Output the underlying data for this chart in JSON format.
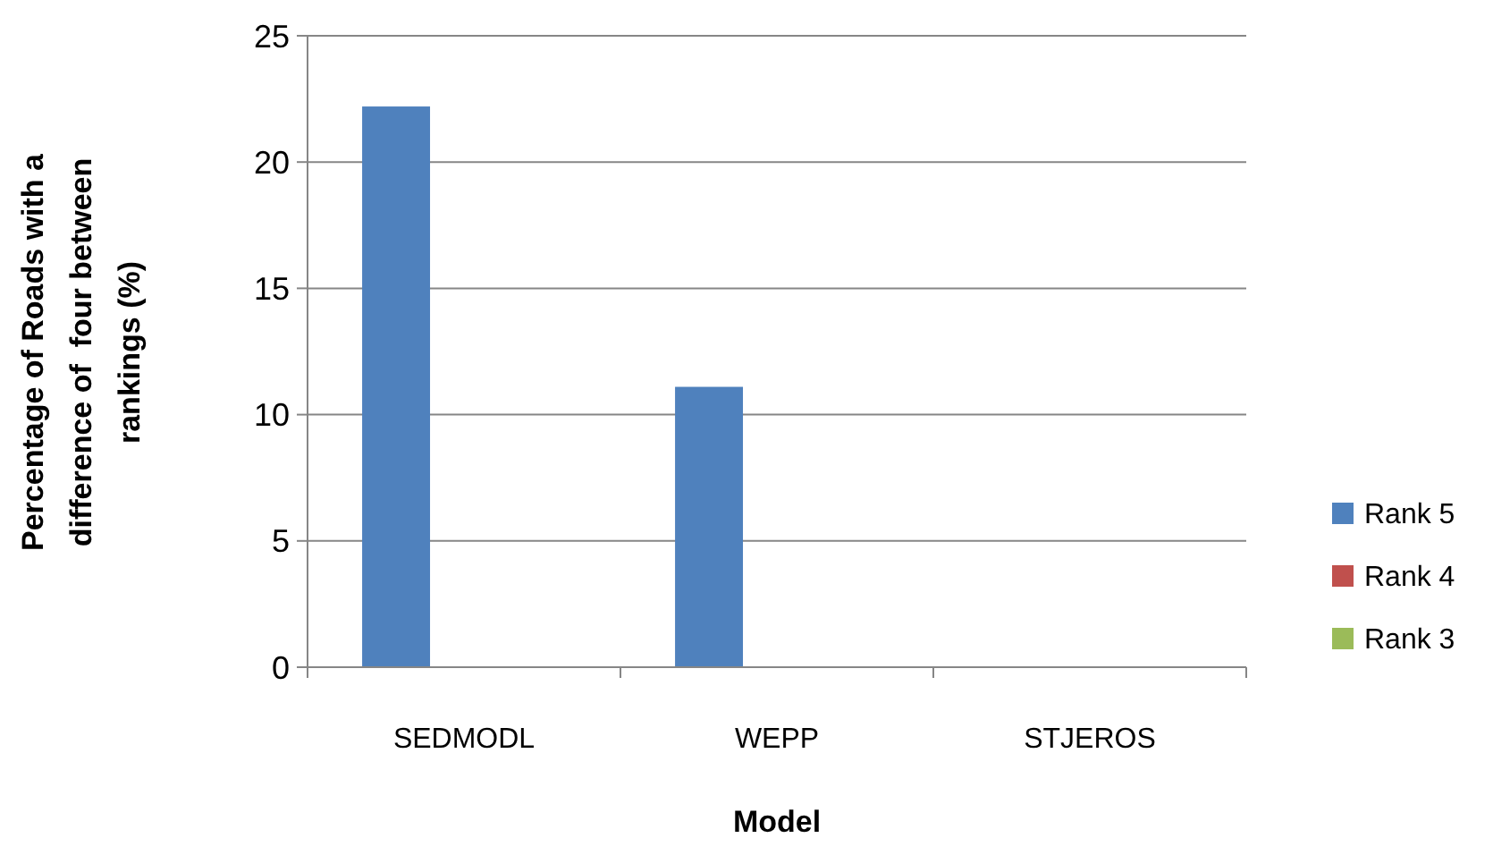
{
  "chart_data": {
    "type": "bar",
    "xlabel": "Model",
    "ylabel": "Percentage of Roads with a\ndifference of  four between\nrankings (%)",
    "categories": [
      "SEDMODL",
      "WEPP",
      "STJEROS"
    ],
    "series": [
      {
        "name": "Rank 5",
        "color": "#4f81bd",
        "values": [
          22.2,
          11.1,
          0
        ]
      },
      {
        "name": "Rank 4",
        "color": "#c0504d",
        "values": [
          0,
          0,
          0
        ]
      },
      {
        "name": "Rank 3",
        "color": "#9bbb59",
        "values": [
          0,
          0,
          0
        ]
      }
    ],
    "ylim": [
      0,
      25
    ],
    "yticks": [
      0,
      5,
      10,
      15,
      20,
      25
    ],
    "grid": "y",
    "legend": "right"
  }
}
